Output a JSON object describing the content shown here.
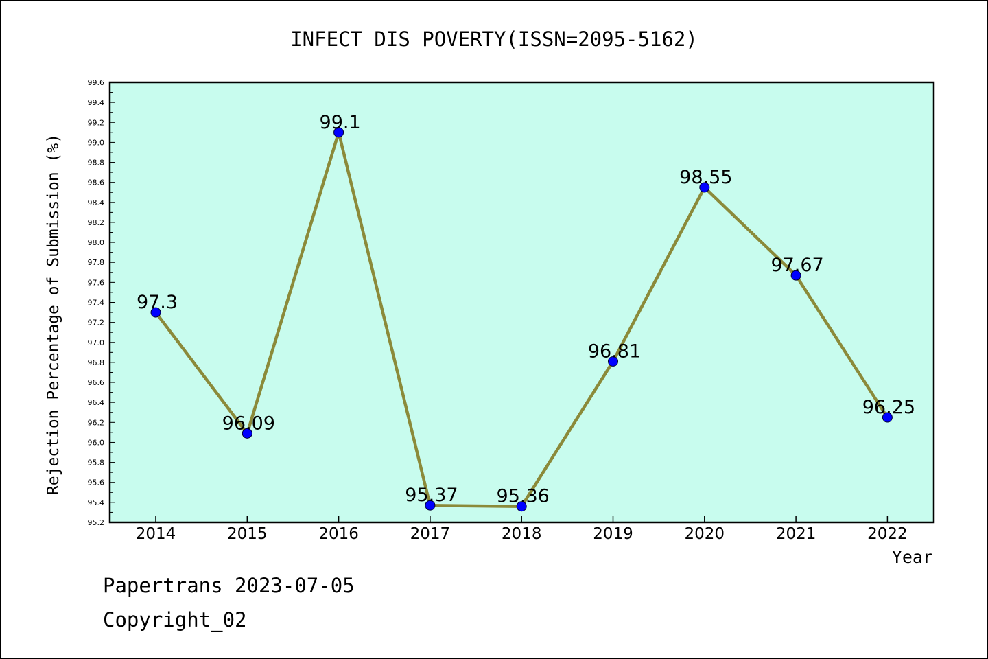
{
  "chart_data": {
    "type": "line",
    "title": "INFECT DIS POVERTY(ISSN=2095-5162)",
    "xlabel": "Year",
    "ylabel": "Rejection Percentage of Submission (%)",
    "categories": [
      "2014",
      "2015",
      "2016",
      "2017",
      "2018",
      "2019",
      "2020",
      "2021",
      "2022"
    ],
    "values": [
      97.3,
      96.09,
      99.1,
      95.37,
      95.36,
      96.81,
      98.55,
      97.67,
      96.25
    ],
    "data_labels": [
      "97.3",
      "96.09",
      "99.1",
      "95.37",
      "95.36",
      "96.81",
      "98.55",
      "97.67",
      "96.25"
    ],
    "ylim": [
      95.2,
      99.6
    ],
    "yticks": [
      "95.2",
      "95.4",
      "95.6",
      "95.8",
      "96.0",
      "96.2",
      "96.4",
      "96.6",
      "96.8",
      "97.0",
      "97.2",
      "97.4",
      "97.6",
      "97.8",
      "98.0",
      "98.2",
      "98.4",
      "98.6",
      "98.8",
      "99.0",
      "99.2",
      "99.4",
      "99.6"
    ],
    "grid": false,
    "colors": {
      "plot_background": "#c8fcee",
      "line": "#8b8a3a",
      "marker": "#0000ff"
    }
  },
  "footer": {
    "line1": "Papertrans 2023-07-05",
    "line2": "Copyright_02"
  }
}
